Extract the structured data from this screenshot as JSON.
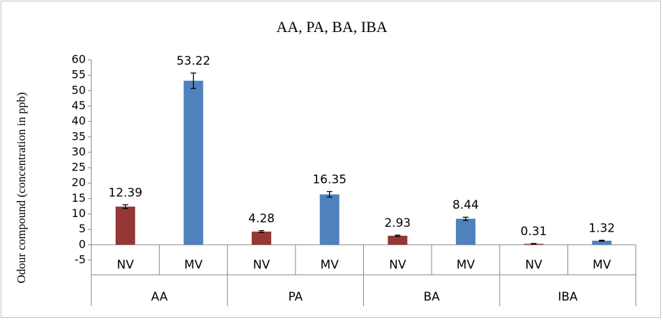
{
  "chart_data": {
    "type": "bar",
    "title": "AA, PA, BA, IBA",
    "y_label": "Odour compound (concentration in ppb)",
    "categories": [
      "NV",
      "MV",
      "NV",
      "MV",
      "NV",
      "MV",
      "NV",
      "MV"
    ],
    "groups": [
      "AA",
      "PA",
      "BA",
      "IBA"
    ],
    "values": [
      12.39,
      53.22,
      4.28,
      16.35,
      2.93,
      8.44,
      0.31,
      1.32
    ],
    "errors": [
      0.6,
      2.5,
      0.3,
      0.9,
      0.2,
      0.5,
      0.1,
      0.15
    ],
    "colors": [
      "#953735",
      "#4f81bd",
      "#953735",
      "#4f81bd",
      "#953735",
      "#4f81bd",
      "#953735",
      "#4f81bd"
    ],
    "ylim": [
      -5,
      60
    ],
    "yticks": [
      -5,
      0,
      5,
      10,
      15,
      20,
      25,
      30,
      35,
      40,
      45,
      50,
      55,
      60
    ]
  }
}
